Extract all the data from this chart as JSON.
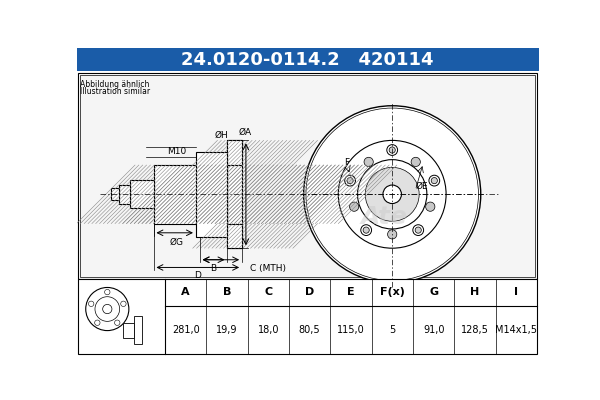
{
  "title_part_number": "24.0120-0114.2",
  "title_code": "420114",
  "header_bg": "#1a5ca8",
  "header_text_color": "#ffffff",
  "note_line1": "Abbildung ähnlich",
  "note_line2": "Illustration similar",
  "table_headers": [
    "A",
    "B",
    "C",
    "D",
    "E",
    "F(x)",
    "G",
    "H",
    "I"
  ],
  "table_values": [
    "281,0",
    "19,9",
    "18,0",
    "80,5",
    "115,0",
    "5",
    "91,0",
    "128,5",
    "M14x1,5"
  ],
  "bg_color": "#ffffff",
  "diagram_bg": "#f0f0f0",
  "border_color": "#000000",
  "table_header_bg": "#e0e0e0"
}
